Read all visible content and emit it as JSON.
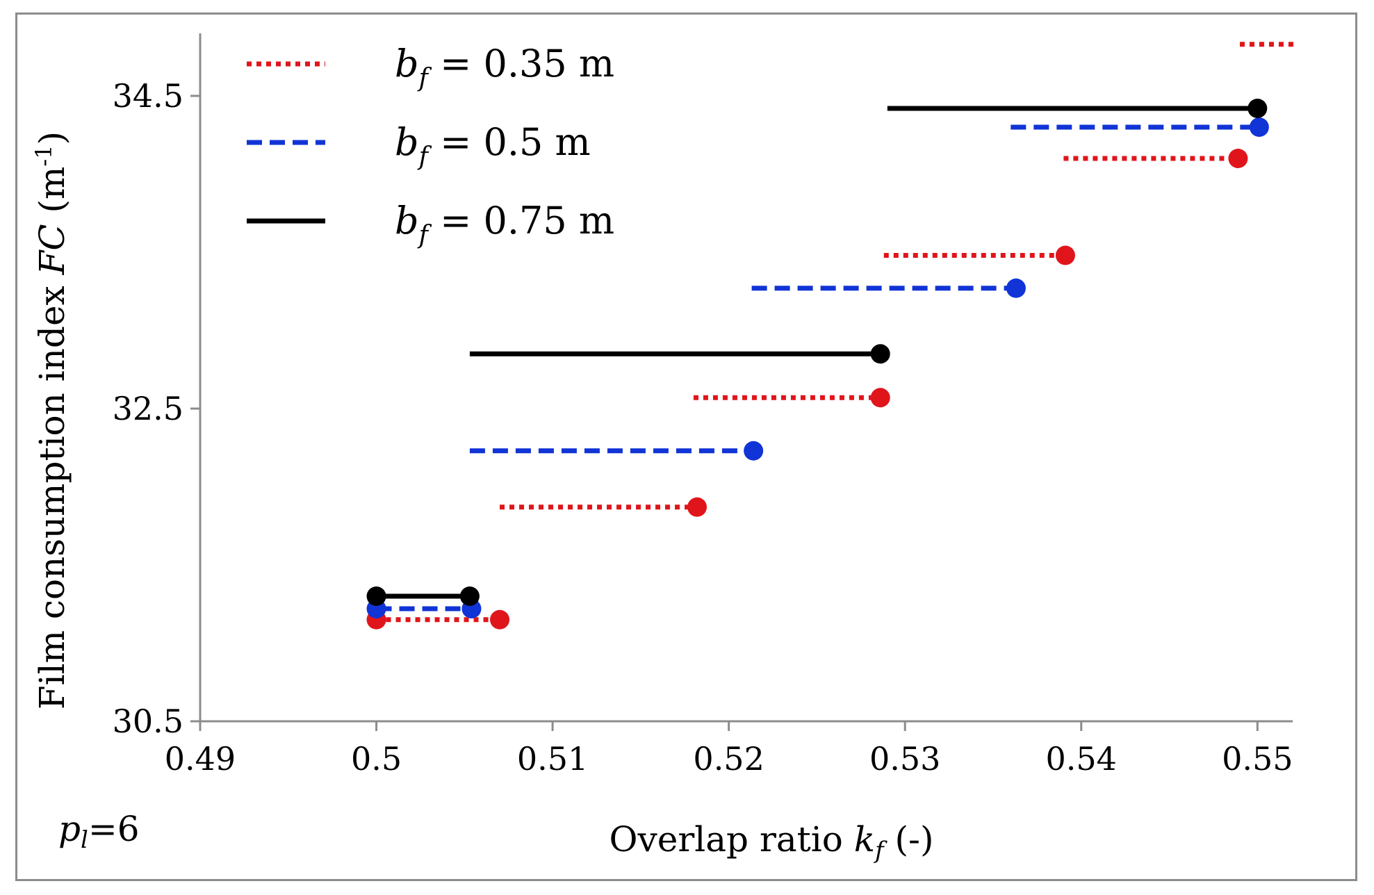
{
  "chart_data": {
    "type": "line",
    "subtype": "step-segments",
    "xlabel": {
      "prefix": "Overlap ratio ",
      "symbol": "k",
      "subscript": "f",
      "suffix": " (-)"
    },
    "ylabel": {
      "prefix": "Film consumption index ",
      "symbol": "FC",
      "unit_pre": " (m",
      "unit_sup": "-1",
      "unit_post": ")"
    },
    "xlim": [
      0.49,
      0.552
    ],
    "ylim": [
      30.5,
      34.9
    ],
    "x_ticks": [
      0.49,
      0.5,
      0.51,
      0.52,
      0.53,
      0.54,
      0.55
    ],
    "x_tick_labels": [
      "0.49",
      "0.5",
      "0.51",
      "0.52",
      "0.53",
      "0.54",
      "0.55"
    ],
    "y_ticks": [
      30.5,
      32.5,
      34.5
    ],
    "y_tick_labels": [
      "30.5",
      "32.5",
      "34.5"
    ],
    "annotation": {
      "symbol": "p",
      "subscript": "l",
      "text": "=6"
    },
    "legend": {
      "placement": "top-left"
    },
    "series": [
      {
        "name": "b_f = 0.35 m",
        "legend_symbol": "b",
        "legend_subscript": "f",
        "legend_value": " = 0.35 m",
        "color": "#e0151b",
        "style": "dotted",
        "segments": [
          {
            "x0": 0.5,
            "x1": 0.507,
            "y": 31.15
          },
          {
            "x0": 0.507,
            "x1": 0.5182,
            "y": 31.87
          },
          {
            "x0": 0.518,
            "x1": 0.5286,
            "y": 32.57
          },
          {
            "x0": 0.5288,
            "x1": 0.5391,
            "y": 33.48
          },
          {
            "x0": 0.539,
            "x1": 0.5489,
            "y": 34.1
          },
          {
            "x0": 0.549,
            "x1": 0.5523,
            "y": 34.83
          }
        ],
        "markers": [
          {
            "x": 0.5,
            "y": 31.15
          },
          {
            "x": 0.507,
            "y": 31.15
          },
          {
            "x": 0.5182,
            "y": 31.87
          },
          {
            "x": 0.5286,
            "y": 32.57
          },
          {
            "x": 0.5391,
            "y": 33.48
          },
          {
            "x": 0.5489,
            "y": 34.1
          }
        ]
      },
      {
        "name": "b_f = 0.5 m",
        "legend_symbol": "b",
        "legend_subscript": "f",
        "legend_value": " = 0.5 m",
        "color": "#1034d6",
        "style": "dashed",
        "segments": [
          {
            "x0": 0.5,
            "x1": 0.5054,
            "y": 31.22
          },
          {
            "x0": 0.5053,
            "x1": 0.5214,
            "y": 32.23
          },
          {
            "x0": 0.5213,
            "x1": 0.5363,
            "y": 33.27
          },
          {
            "x0": 0.536,
            "x1": 0.5501,
            "y": 34.3
          }
        ],
        "markers": [
          {
            "x": 0.5,
            "y": 31.22
          },
          {
            "x": 0.5054,
            "y": 31.22
          },
          {
            "x": 0.5214,
            "y": 32.23
          },
          {
            "x": 0.5363,
            "y": 33.27
          },
          {
            "x": 0.5501,
            "y": 34.3
          }
        ]
      },
      {
        "name": "b_f = 0.75 m",
        "legend_symbol": "b",
        "legend_subscript": "f",
        "legend_value": " = 0.75 m",
        "color": "#000000",
        "style": "solid",
        "segments": [
          {
            "x0": 0.5,
            "x1": 0.5053,
            "y": 31.3
          },
          {
            "x0": 0.5053,
            "x1": 0.5286,
            "y": 32.85
          },
          {
            "x0": 0.529,
            "x1": 0.55,
            "y": 34.42
          }
        ],
        "markers": [
          {
            "x": 0.5,
            "y": 31.3
          },
          {
            "x": 0.5053,
            "y": 31.3
          },
          {
            "x": 0.5286,
            "y": 32.85
          },
          {
            "x": 0.55,
            "y": 34.42
          }
        ]
      }
    ]
  }
}
